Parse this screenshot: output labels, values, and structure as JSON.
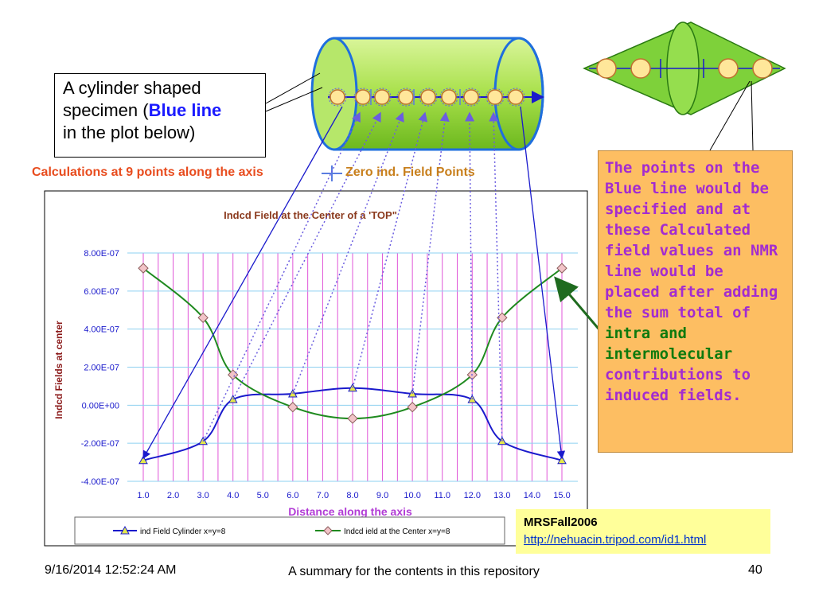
{
  "callout": {
    "line1": "A cylinder shaped",
    "line2_prefix": "specimen (",
    "line2_blue": "Blue line",
    "line3": "in the plot below)"
  },
  "calc_heading": "Calculations at 9 points along the axis",
  "zero_points_label": "Zero ind. Field Points",
  "explanation": {
    "part1": "The points on the Blue line would be specified and at these Calculated field values an NMR line would be placed after adding the sum total of ",
    "intra": "intra",
    "and": " and",
    "intermolecular": "intermolecular",
    "part2": " contributions to induced fields."
  },
  "source": {
    "title": "MRSFall2006",
    "url": "http://nehuacin.tripod.com/id1.html"
  },
  "footer": {
    "date": "9/16/2014 12:52:24 AM",
    "center": "A summary for the contents in this repository",
    "page": "40"
  },
  "colors": {
    "cylinder_line": "#1a1acc",
    "center_line": "#1f8a1f",
    "grid_vertical": "#e055d8",
    "grid_horizontal": "#8ed0f0",
    "cylinder_fill": "#a8e04a"
  },
  "chart_data": {
    "type": "line",
    "title": "Indcd Field at the Center of a 'TOP\"",
    "xlabel": "Distance along the axis",
    "ylabel": "Indcd Fields at center",
    "ylim": [
      -4e-07,
      8e-07
    ],
    "x_ticks": [
      "1.0",
      "2.0",
      "3.0",
      "4.0",
      "5.0",
      "6.0",
      "7.0",
      "8.0",
      "9.0",
      "10.0",
      "11.0",
      "12.0",
      "13.0",
      "14.0",
      "15.0"
    ],
    "y_ticks": [
      "-4.00E-07",
      "-2.00E-07",
      "0.00E+00",
      "2.00E-07",
      "4.00E-07",
      "6.00E-07",
      "8.00E-07"
    ],
    "series": [
      {
        "name": "ind Field Cylinder x=y=8",
        "color": "#1a1acc",
        "marker": "triangle",
        "x": [
          1,
          3,
          4,
          6,
          8,
          10,
          12,
          13,
          15
        ],
        "y": [
          -2.9e-07,
          -1.9e-07,
          3e-08,
          6e-08,
          9e-08,
          6e-08,
          3e-08,
          -1.9e-07,
          -2.9e-07
        ]
      },
      {
        "name": "Indcd ield at the Center x=y=8",
        "color": "#1f8a1f",
        "marker": "diamond",
        "x": [
          1,
          3,
          4,
          6,
          8,
          10,
          12,
          13,
          15
        ],
        "y": [
          7.2e-07,
          4.6e-07,
          1.6e-07,
          -1e-08,
          -7e-08,
          -1e-08,
          1.6e-07,
          4.6e-07,
          7.2e-07
        ]
      }
    ],
    "legend": "bottom"
  }
}
